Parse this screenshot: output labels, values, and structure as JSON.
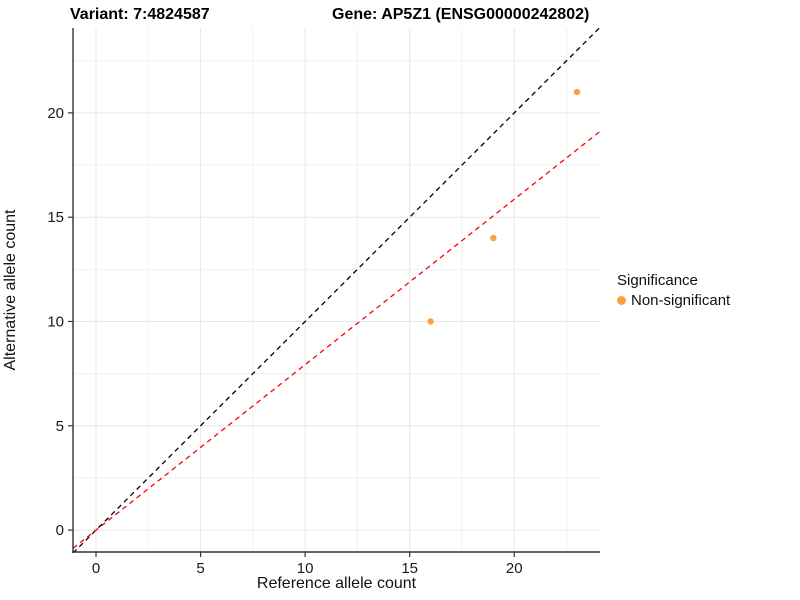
{
  "figure": {
    "title_variant": "Variant: 7:4824587",
    "title_gene": "Gene: AP5Z1 (ENSG00000242802)"
  },
  "legend": {
    "title": "Significance",
    "items": [
      {
        "label": "Non-significant",
        "color": "#F9A242"
      }
    ]
  },
  "chart_data": {
    "type": "scatter",
    "title": "Variant: 7:4824587  Gene: AP5Z1 (ENSG00000242802)",
    "xlabel": "Reference allele count",
    "ylabel": "Alternative allele count",
    "xlim": [
      -1.1,
      24.1
    ],
    "ylim": [
      -1.05,
      24.07
    ],
    "x_ticks": [
      0,
      5,
      10,
      15,
      20
    ],
    "y_ticks": [
      0,
      5,
      10,
      15,
      20
    ],
    "x_minor_ticks": [
      2.5,
      7.5,
      12.5,
      17.5,
      22.5
    ],
    "y_minor_ticks": [
      2.5,
      7.5,
      12.5,
      17.5,
      22.5
    ],
    "grid": true,
    "legend_position": "right",
    "series": [
      {
        "name": "Non-significant",
        "type": "points",
        "color": "#F9A242",
        "points": [
          {
            "x": 16,
            "y": 10
          },
          {
            "x": 19,
            "y": 14
          },
          {
            "x": 23,
            "y": 21
          }
        ]
      }
    ],
    "lines": [
      {
        "name": "identity",
        "slope": 1,
        "intercept": 0,
        "color": "#000000",
        "style": "dashed"
      },
      {
        "name": "fit",
        "slope": 0.793,
        "intercept": 0,
        "color": "#FF0000",
        "style": "dashed"
      }
    ],
    "style": {
      "grid_major_color": "#E7E7E7",
      "grid_minor_color": "#F1F1F1",
      "axis_color": "#333333",
      "tick_label_color": "#1a1a1a"
    }
  }
}
